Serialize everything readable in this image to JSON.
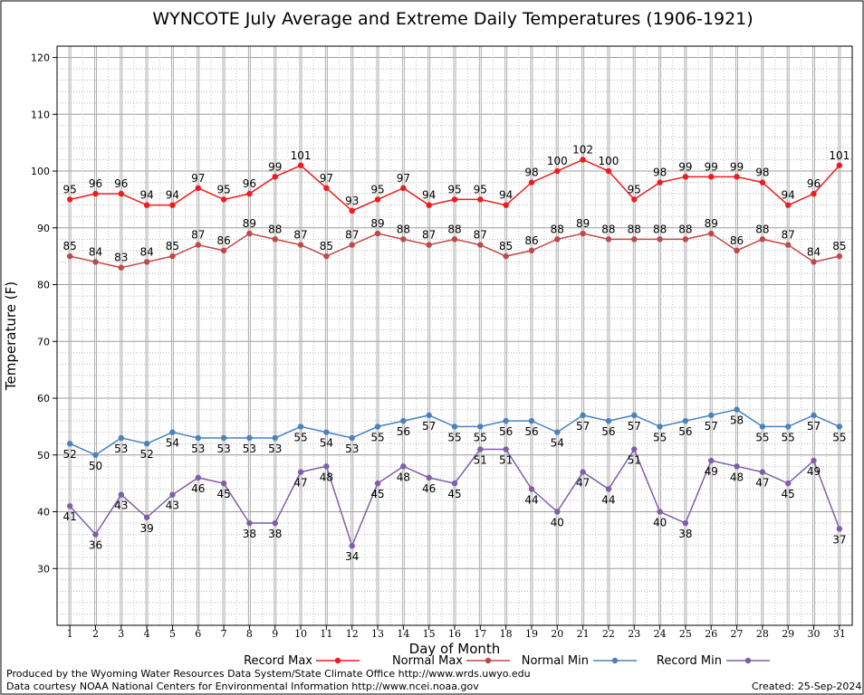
{
  "chart_data": {
    "type": "line",
    "title": "WYNCOTE July Average and Extreme Daily Temperatures (1906-1921)",
    "xlabel": "Day of Month",
    "ylabel": "Temperature (F)",
    "ylim": [
      20,
      122
    ],
    "xlim": [
      0.5,
      31.5
    ],
    "yticks": [
      30,
      40,
      50,
      60,
      70,
      80,
      90,
      100,
      110,
      120
    ],
    "x": [
      1,
      2,
      3,
      4,
      5,
      6,
      7,
      8,
      9,
      10,
      11,
      12,
      13,
      14,
      15,
      16,
      17,
      18,
      19,
      20,
      21,
      22,
      23,
      24,
      25,
      26,
      27,
      28,
      29,
      30,
      31
    ],
    "grid": true,
    "legend": "bottom",
    "series": [
      {
        "name": "Record Max",
        "color": "#ee1c1c",
        "label_position": "above",
        "values": [
          95,
          96,
          96,
          94,
          94,
          97,
          95,
          96,
          99,
          101,
          97,
          93,
          95,
          97,
          94,
          95,
          95,
          94,
          98,
          100,
          102,
          100,
          95,
          98,
          99,
          99,
          99,
          98,
          94,
          96,
          101
        ]
      },
      {
        "name": "Normal Max",
        "color": "#c04848",
        "label_position": "above",
        "values": [
          85,
          84,
          83,
          84,
          85,
          87,
          86,
          89,
          88,
          87,
          85,
          87,
          89,
          88,
          87,
          88,
          87,
          85,
          86,
          88,
          89,
          88,
          88,
          88,
          88,
          89,
          86,
          88,
          87,
          84,
          85
        ]
      },
      {
        "name": "Normal Min",
        "color": "#4a82bd",
        "label_position": "below",
        "values": [
          52,
          50,
          53,
          52,
          54,
          53,
          53,
          53,
          53,
          55,
          54,
          53,
          55,
          56,
          57,
          55,
          55,
          56,
          56,
          54,
          57,
          56,
          57,
          55,
          56,
          57,
          58,
          55,
          55,
          57,
          55
        ]
      },
      {
        "name": "Record Min",
        "color": "#7f5fa8",
        "label_position": "below",
        "values": [
          41,
          36,
          43,
          39,
          43,
          46,
          45,
          38,
          38,
          47,
          48,
          34,
          45,
          48,
          46,
          45,
          51,
          51,
          44,
          40,
          47,
          44,
          51,
          40,
          38,
          49,
          48,
          47,
          45,
          49,
          37
        ]
      }
    ]
  },
  "footer": {
    "produced_by": "Produced by the Wyoming Water Resources Data System/State Climate Office http://www.wrds.uwyo.edu",
    "courtesy": "Data courtesy NOAA National Centers for Environmental Information http://www.ncei.noaa.gov",
    "created": "Created:  25-Sep-2024"
  }
}
